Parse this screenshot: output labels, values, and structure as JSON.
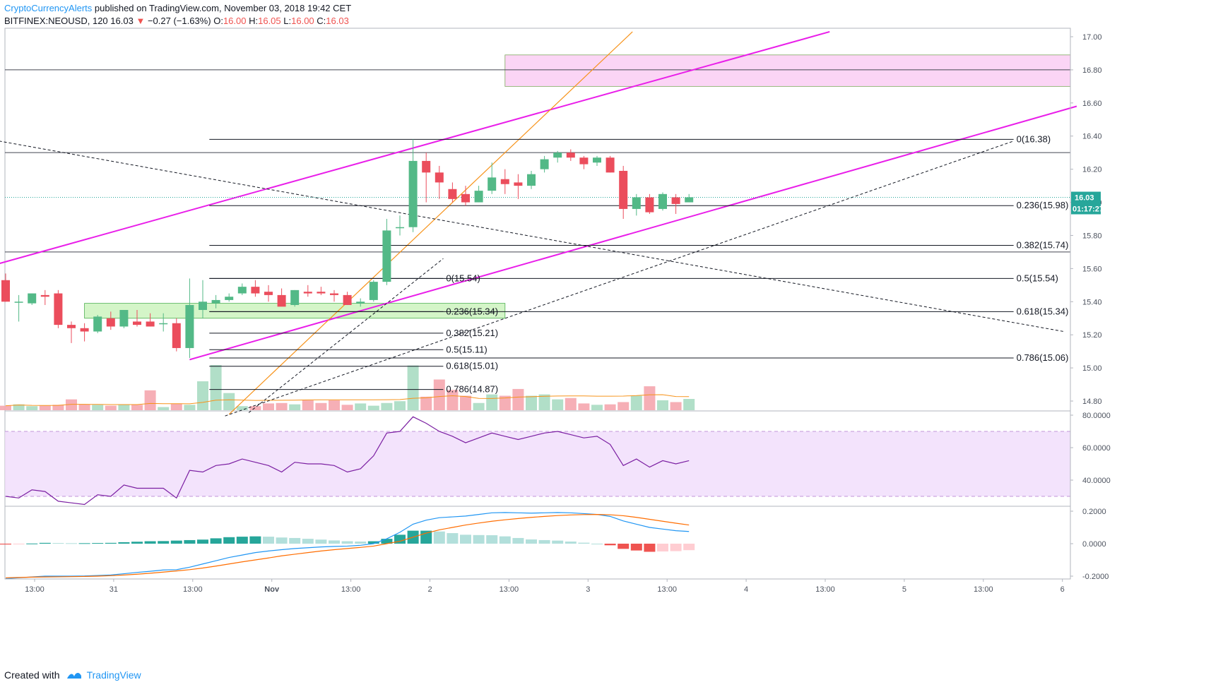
{
  "header": {
    "author": "CryptoCurrencyAlerts",
    "published": " published on TradingView.com, November 03, 2018 19:42 CET",
    "symbol": "BITFINEX:NEOUSD, 120",
    "last": "16.03",
    "change": "−0.27 (−1.63%)",
    "o_label": "O:",
    "o": "16.00",
    "h_label": "H:",
    "h": "16.05",
    "l_label": "L:",
    "l": "16.00",
    "c_label": "C:",
    "c": "16.03"
  },
  "footer": {
    "created_with": "Created with",
    "brand": "TradingView"
  },
  "colors": {
    "up": "#53b987",
    "down": "#eb4d5c",
    "channel": "#e91ee9",
    "orange": "#f7931a",
    "rsi": "#7b1fa2",
    "macd": "#2196f3",
    "signal": "#ff6d00"
  },
  "chart_data": [
    {
      "type": "candlestick",
      "title": "BITFINEX:NEOUSD, 120",
      "ylim": [
        14.7,
        17.1
      ],
      "y_ticks": [
        "17.00",
        "16.80",
        "16.60",
        "16.40",
        "16.20",
        "16.00",
        "15.80",
        "15.60",
        "15.40",
        "15.20",
        "15.00",
        "14.80"
      ],
      "x_ticks": [
        "13:00",
        "31",
        "13:00",
        "Nov",
        "13:00",
        "2",
        "13:00",
        "3",
        "13:00",
        "4",
        "13:00",
        "5",
        "13:00",
        "6"
      ],
      "last_price_label": "16.03",
      "countdown_label": "01:17:27",
      "candles": [
        {
          "o": 15.53,
          "h": 15.57,
          "l": 15.4,
          "c": 15.4
        },
        {
          "o": 15.4,
          "h": 15.44,
          "l": 15.28,
          "c": 15.4
        },
        {
          "o": 15.39,
          "h": 15.45,
          "l": 15.38,
          "c": 15.45
        },
        {
          "o": 15.44,
          "h": 15.47,
          "l": 15.38,
          "c": 15.43
        },
        {
          "o": 15.45,
          "h": 15.47,
          "l": 15.24,
          "c": 15.26
        },
        {
          "o": 15.26,
          "h": 15.28,
          "l": 15.15,
          "c": 15.24
        },
        {
          "o": 15.24,
          "h": 15.27,
          "l": 15.16,
          "c": 15.22
        },
        {
          "o": 15.22,
          "h": 15.32,
          "l": 15.21,
          "c": 15.31
        },
        {
          "o": 15.3,
          "h": 15.34,
          "l": 15.23,
          "c": 15.25
        },
        {
          "o": 15.25,
          "h": 15.35,
          "l": 15.24,
          "c": 15.35
        },
        {
          "o": 15.28,
          "h": 15.35,
          "l": 15.25,
          "c": 15.26
        },
        {
          "o": 15.28,
          "h": 15.33,
          "l": 15.25,
          "c": 15.25
        },
        {
          "o": 15.27,
          "h": 15.33,
          "l": 15.22,
          "c": 15.27
        },
        {
          "o": 15.27,
          "h": 15.3,
          "l": 15.1,
          "c": 15.12
        },
        {
          "o": 15.12,
          "h": 15.54,
          "l": 15.06,
          "c": 15.38
        },
        {
          "o": 15.35,
          "h": 15.53,
          "l": 15.3,
          "c": 15.4
        },
        {
          "o": 15.39,
          "h": 15.44,
          "l": 15.36,
          "c": 15.41
        },
        {
          "o": 15.41,
          "h": 15.45,
          "l": 15.4,
          "c": 15.43
        },
        {
          "o": 15.45,
          "h": 15.51,
          "l": 15.44,
          "c": 15.49
        },
        {
          "o": 15.49,
          "h": 15.53,
          "l": 15.43,
          "c": 15.45
        },
        {
          "o": 15.46,
          "h": 15.5,
          "l": 15.4,
          "c": 15.44
        },
        {
          "o": 15.44,
          "h": 15.48,
          "l": 15.38,
          "c": 15.37
        },
        {
          "o": 15.38,
          "h": 15.47,
          "l": 15.37,
          "c": 15.47
        },
        {
          "o": 15.46,
          "h": 15.5,
          "l": 15.43,
          "c": 15.45
        },
        {
          "o": 15.46,
          "h": 15.49,
          "l": 15.44,
          "c": 15.45
        },
        {
          "o": 15.45,
          "h": 15.47,
          "l": 15.4,
          "c": 15.44
        },
        {
          "o": 15.44,
          "h": 15.46,
          "l": 15.38,
          "c": 15.38
        },
        {
          "o": 15.39,
          "h": 15.42,
          "l": 15.37,
          "c": 15.4
        },
        {
          "o": 15.41,
          "h": 15.53,
          "l": 15.4,
          "c": 15.52
        },
        {
          "o": 15.52,
          "h": 15.9,
          "l": 15.5,
          "c": 15.83
        },
        {
          "o": 15.85,
          "h": 15.92,
          "l": 15.8,
          "c": 15.85
        },
        {
          "o": 15.85,
          "h": 16.38,
          "l": 15.82,
          "c": 16.25
        },
        {
          "o": 16.25,
          "h": 16.3,
          "l": 16.0,
          "c": 16.18
        },
        {
          "o": 16.18,
          "h": 16.22,
          "l": 16.02,
          "c": 16.12
        },
        {
          "o": 16.08,
          "h": 16.12,
          "l": 16.0,
          "c": 16.02
        },
        {
          "o": 16.05,
          "h": 16.1,
          "l": 15.98,
          "c": 16.0
        },
        {
          "o": 16.0,
          "h": 16.1,
          "l": 16.0,
          "c": 16.07
        },
        {
          "o": 16.07,
          "h": 16.24,
          "l": 16.05,
          "c": 16.15
        },
        {
          "o": 16.14,
          "h": 16.2,
          "l": 16.05,
          "c": 16.11
        },
        {
          "o": 16.12,
          "h": 16.17,
          "l": 16.02,
          "c": 16.1
        },
        {
          "o": 16.1,
          "h": 16.19,
          "l": 16.08,
          "c": 16.17
        },
        {
          "o": 16.2,
          "h": 16.28,
          "l": 16.18,
          "c": 16.26
        },
        {
          "o": 16.27,
          "h": 16.31,
          "l": 16.24,
          "c": 16.3
        },
        {
          "o": 16.3,
          "h": 16.32,
          "l": 16.25,
          "c": 16.27
        },
        {
          "o": 16.27,
          "h": 16.28,
          "l": 16.2,
          "c": 16.23
        },
        {
          "o": 16.24,
          "h": 16.28,
          "l": 16.22,
          "c": 16.27
        },
        {
          "o": 16.27,
          "h": 16.28,
          "l": 16.18,
          "c": 16.18
        },
        {
          "o": 16.19,
          "h": 16.22,
          "l": 15.9,
          "c": 15.96
        },
        {
          "o": 15.96,
          "h": 16.05,
          "l": 15.92,
          "c": 16.03
        },
        {
          "o": 16.03,
          "h": 16.05,
          "l": 15.93,
          "c": 15.94
        },
        {
          "o": 15.96,
          "h": 16.06,
          "l": 15.95,
          "c": 16.05
        },
        {
          "o": 16.03,
          "h": 16.05,
          "l": 15.93,
          "c": 15.99
        },
        {
          "o": 16.0,
          "h": 16.05,
          "l": 16.0,
          "c": 16.03
        }
      ],
      "volumes": [
        0.1,
        0.13,
        0.09,
        0.1,
        0.12,
        0.24,
        0.13,
        0.12,
        0.1,
        0.12,
        0.12,
        0.44,
        0.07,
        0.14,
        0.12,
        0.64,
        1.0,
        0.38,
        0.09,
        0.09,
        0.15,
        0.16,
        0.13,
        0.22,
        0.16,
        0.22,
        0.12,
        0.15,
        0.1,
        0.16,
        0.2,
        0.99,
        0.3,
        0.68,
        0.45,
        0.32,
        0.16,
        0.35,
        0.32,
        0.47,
        0.32,
        0.35,
        0.24,
        0.27,
        0.15,
        0.12,
        0.13,
        0.18,
        0.32,
        0.53,
        0.22,
        0.18,
        0.25
      ],
      "horizontal_levels": [
        16.8,
        16.3,
        15.7
      ],
      "resistance_zone": [
        16.7,
        16.89
      ],
      "support_zone": [
        15.3,
        15.39
      ],
      "channel_lines": [
        {
          "from": [
            -0.5,
            15.63
          ],
          "to": [
            62.7,
            17.03
          ]
        },
        {
          "from": [
            14.0,
            15.05
          ],
          "to": [
            81.5,
            16.58
          ]
        }
      ],
      "orange_trendline": {
        "from": [
          17.0,
          14.72
        ],
        "to": [
          47.7,
          17.03
        ]
      },
      "dashed_lines": [
        {
          "from": [
            -0.5,
            16.37
          ],
          "to": [
            80.5,
            15.22
          ]
        },
        {
          "from": [
            16.7,
            14.71
          ],
          "to": [
            76.7,
            16.37
          ]
        },
        {
          "from": [
            18.5,
            14.73
          ],
          "to": [
            33.3,
            15.66
          ]
        }
      ],
      "fib_right": {
        "span": [
          15.5,
          76.7
        ],
        "levels": [
          {
            "price": 16.38,
            "label": "0(16.38)"
          },
          {
            "price": 15.98,
            "label": "0.236(15.98)"
          },
          {
            "price": 15.74,
            "label": "0.382(15.74)"
          },
          {
            "price": 15.54,
            "label": "0.5(15.54)"
          },
          {
            "price": 15.34,
            "label": "0.618(15.34)"
          },
          {
            "price": 15.06,
            "label": "0.786(15.06)"
          }
        ]
      },
      "fib_left": {
        "span": [
          15.5,
          33.3
        ],
        "levels": [
          {
            "price": 15.54,
            "label": "0(15.54)"
          },
          {
            "price": 15.34,
            "label": "0.236(15.34)"
          },
          {
            "price": 15.21,
            "label": "0.382(15.21)"
          },
          {
            "price": 15.11,
            "label": "0.5(15.11)"
          },
          {
            "price": 15.01,
            "label": "0.618(15.01)"
          },
          {
            "price": 14.87,
            "label": "0.786(14.87)"
          }
        ]
      }
    },
    {
      "type": "line",
      "title": "RSI",
      "ylim": [
        26,
        82
      ],
      "band": [
        30,
        70
      ],
      "y_ticks": [
        "80.0000",
        "60.0000",
        "40.0000"
      ],
      "values": [
        30,
        29,
        34,
        33,
        27,
        26,
        25,
        31,
        30,
        37,
        35,
        35,
        35,
        29,
        46,
        45,
        49,
        50,
        53,
        51,
        49,
        45,
        51,
        50,
        50,
        49,
        45,
        47,
        55,
        69,
        70,
        79,
        75,
        70,
        67,
        63,
        66,
        69,
        67,
        65,
        67,
        69,
        70,
        68,
        66,
        67,
        62,
        49,
        53,
        48,
        52,
        50,
        52
      ]
    },
    {
      "type": "line",
      "title": "MACD",
      "ylim": [
        -0.23,
        0.23
      ],
      "y_ticks": [
        "0.2000",
        "0.0000",
        "-0.2000"
      ],
      "macd": [
        -0.215,
        -0.21,
        -0.205,
        -0.2,
        -0.2,
        -0.2,
        -0.199,
        -0.196,
        -0.193,
        -0.185,
        -0.177,
        -0.17,
        -0.162,
        -0.16,
        -0.145,
        -0.125,
        -0.105,
        -0.085,
        -0.07,
        -0.055,
        -0.045,
        -0.037,
        -0.03,
        -0.025,
        -0.02,
        -0.017,
        -0.015,
        -0.01,
        0.0,
        0.03,
        0.07,
        0.12,
        0.145,
        0.16,
        0.165,
        0.17,
        0.18,
        0.19,
        0.192,
        0.19,
        0.188,
        0.19,
        0.192,
        0.19,
        0.185,
        0.18,
        0.168,
        0.14,
        0.12,
        0.1,
        0.09,
        0.08,
        0.075
      ],
      "signal": [
        -0.21,
        -0.208,
        -0.206,
        -0.205,
        -0.204,
        -0.203,
        -0.202,
        -0.2,
        -0.197,
        -0.193,
        -0.188,
        -0.182,
        -0.175,
        -0.168,
        -0.16,
        -0.15,
        -0.138,
        -0.125,
        -0.112,
        -0.1,
        -0.088,
        -0.075,
        -0.065,
        -0.055,
        -0.045,
        -0.037,
        -0.03,
        -0.023,
        -0.015,
        0.0,
        0.015,
        0.04,
        0.065,
        0.085,
        0.1,
        0.115,
        0.127,
        0.138,
        0.147,
        0.155,
        0.162,
        0.168,
        0.173,
        0.177,
        0.179,
        0.18,
        0.178,
        0.172,
        0.162,
        0.15,
        0.138,
        0.126,
        0.115
      ],
      "histogram": [
        -0.005,
        -0.002,
        0.001,
        0.005,
        0.004,
        0.003,
        0.003,
        0.004,
        0.005,
        0.009,
        0.012,
        0.015,
        0.016,
        0.019,
        0.022,
        0.025,
        0.033,
        0.04,
        0.043,
        0.045,
        0.043,
        0.038,
        0.035,
        0.03,
        0.025,
        0.02,
        0.015,
        0.013,
        0.015,
        0.03,
        0.055,
        0.08,
        0.08,
        0.075,
        0.065,
        0.055,
        0.053,
        0.052,
        0.045,
        0.035,
        0.026,
        0.022,
        0.019,
        0.013,
        0.006,
        0.0,
        -0.01,
        -0.032,
        -0.042,
        -0.05,
        -0.048,
        -0.046,
        -0.04
      ]
    }
  ]
}
